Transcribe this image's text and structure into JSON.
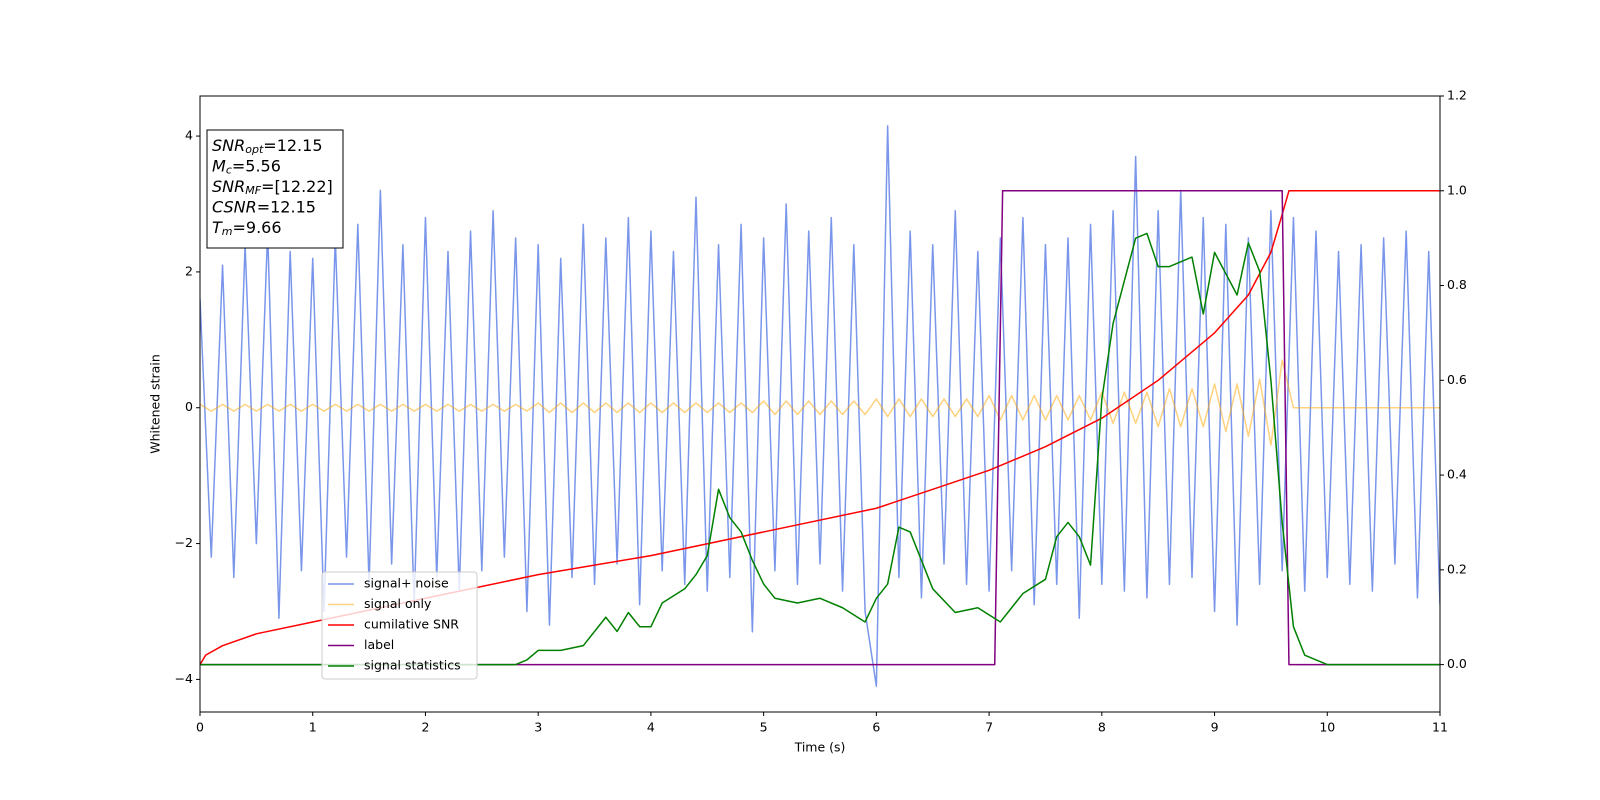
{
  "chart_data": {
    "type": "line",
    "xlabel": "Time (s)",
    "ylabel": "Whitened strain",
    "xlim": [
      0,
      11
    ],
    "xticks": [
      0,
      1,
      2,
      3,
      4,
      5,
      6,
      7,
      8,
      9,
      10,
      11
    ],
    "ylim": [
      -4.48,
      4.59
    ],
    "yticks": [
      {
        "value": -4,
        "label": "−4"
      },
      {
        "value": -2,
        "label": "−2"
      },
      0,
      2,
      4
    ],
    "y2lim": [
      -0.1,
      1.2
    ],
    "y2ticks": [
      {
        "value": 0,
        "label": "0.0"
      },
      0.2,
      0.4,
      0.6,
      0.8,
      {
        "value": 1,
        "label": "1.0"
      },
      1.2
    ],
    "legend": "best",
    "annotations": [
      {
        "symbol": "SNR",
        "subscript": "opt",
        "text": "=12.15"
      },
      {
        "symbol": "M",
        "subscript": "c",
        "text": "=5.56"
      },
      {
        "symbol": "SNR",
        "subscript": "MF",
        "text": "=[12.22]"
      },
      {
        "symbol": "CSNR",
        "text": "=12.15"
      },
      {
        "symbol": "T",
        "subscript": "m",
        "text": "=9.66"
      }
    ],
    "x": [
      0,
      0.1,
      0.2,
      0.3,
      0.4,
      0.5,
      0.6,
      0.7,
      0.8,
      0.9,
      1,
      1.1,
      1.2,
      1.3,
      1.4,
      1.5,
      1.6,
      1.7,
      1.8,
      1.9,
      2,
      2.1,
      2.2,
      2.3,
      2.4,
      2.5,
      2.6,
      2.7,
      2.8,
      2.9,
      3,
      3.1,
      3.2,
      3.3,
      3.4,
      3.5,
      3.6,
      3.7,
      3.8,
      3.9,
      4,
      4.1,
      4.2,
      4.3,
      4.4,
      4.5,
      4.6,
      4.7,
      4.8,
      4.9,
      5,
      5.1,
      5.2,
      5.3,
      5.4,
      5.5,
      5.6,
      5.7,
      5.8,
      5.9,
      6,
      6.1,
      6.2,
      6.3,
      6.4,
      6.5,
      6.6,
      6.7,
      6.8,
      6.9,
      7,
      7.1,
      7.2,
      7.3,
      7.4,
      7.5,
      7.6,
      7.7,
      7.8,
      7.9,
      8,
      8.1,
      8.2,
      8.3,
      8.4,
      8.5,
      8.6,
      8.7,
      8.8,
      8.9,
      9,
      9.1,
      9.2,
      9.3,
      9.4,
      9.5,
      9.6,
      9.7,
      9.8,
      9.9,
      10,
      10.1,
      10.2,
      10.3,
      10.4,
      10.5,
      10.6,
      10.7,
      10.8,
      10.9,
      11
    ],
    "series": [
      {
        "name": "signal+ noise",
        "color": "#4169e1",
        "alpha": 0.7,
        "values": [
          1.6,
          -2.2,
          2.1,
          -2.5,
          2.4,
          -2.0,
          2.6,
          -3.1,
          2.3,
          -2.4,
          2.2,
          -3.0,
          2.5,
          -2.2,
          2.7,
          -2.6,
          3.2,
          -2.3,
          2.4,
          -2.9,
          2.8,
          -2.5,
          2.3,
          -2.7,
          2.6,
          -2.4,
          2.9,
          -2.2,
          2.5,
          -3.0,
          2.4,
          -3.2,
          2.2,
          -2.5,
          2.7,
          -2.6,
          2.5,
          -2.3,
          2.8,
          -2.9,
          2.6,
          -2.4,
          2.3,
          -2.6,
          3.1,
          -2.7,
          2.4,
          -2.5,
          2.7,
          -3.3,
          2.5,
          -2.4,
          3.0,
          -2.6,
          2.6,
          -2.3,
          2.8,
          -2.7,
          2.4,
          -3.0,
          -4.1,
          4.15,
          -2.5,
          2.6,
          -2.8,
          2.4,
          -2.3,
          2.9,
          -2.6,
          2.3,
          -2.7,
          2.5,
          -2.4,
          2.8,
          -2.9,
          2.4,
          -2.6,
          2.5,
          -3.1,
          2.7,
          -2.6,
          2.9,
          -2.7,
          3.7,
          -2.8,
          2.9,
          -2.6,
          3.2,
          -2.5,
          2.8,
          -3.0,
          2.7,
          -3.2,
          2.5,
          -2.6,
          2.9,
          -2.4,
          2.8,
          -2.7,
          2.6,
          -2.5,
          2.3,
          -2.6,
          2.4,
          -2.7,
          2.5,
          -2.3,
          2.6,
          -2.8,
          2.3,
          -2.9
        ]
      },
      {
        "name": "signal only",
        "color": "#ffa500",
        "alpha": 0.5,
        "values": [
          0.05,
          -0.05,
          0.05,
          -0.05,
          0.05,
          -0.05,
          0.05,
          -0.05,
          0.05,
          -0.05,
          0.05,
          -0.05,
          0.05,
          -0.05,
          0.05,
          -0.05,
          0.05,
          -0.05,
          0.05,
          -0.05,
          0.05,
          -0.05,
          0.05,
          -0.05,
          0.05,
          -0.05,
          0.05,
          -0.05,
          0.05,
          -0.05,
          0.07,
          -0.07,
          0.07,
          -0.07,
          0.07,
          -0.07,
          0.07,
          -0.07,
          0.07,
          -0.07,
          0.07,
          -0.07,
          0.07,
          -0.07,
          0.07,
          -0.07,
          0.07,
          -0.07,
          0.07,
          -0.07,
          0.1,
          -0.1,
          0.1,
          -0.1,
          0.1,
          -0.1,
          0.1,
          -0.1,
          0.1,
          -0.1,
          0.13,
          -0.13,
          0.13,
          -0.13,
          0.13,
          -0.13,
          0.13,
          -0.13,
          0.13,
          -0.13,
          0.18,
          -0.18,
          0.18,
          -0.18,
          0.18,
          -0.18,
          0.18,
          -0.18,
          0.18,
          -0.18,
          0.23,
          -0.23,
          0.23,
          -0.23,
          0.23,
          -0.28,
          0.28,
          -0.28,
          0.28,
          -0.28,
          0.35,
          -0.35,
          0.35,
          -0.42,
          0.42,
          -0.55,
          0.7,
          0,
          0,
          0,
          0,
          0,
          0,
          0,
          0,
          0,
          0,
          0,
          0,
          0,
          0
        ]
      },
      {
        "name": "cumilative SNR",
        "color": "#ff0000",
        "axis": "y2",
        "x": [
          0,
          0.05,
          0.2,
          0.5,
          1,
          2,
          3,
          4,
          5,
          6,
          6.5,
          7,
          7.5,
          8,
          8.5,
          9,
          9.3,
          9.5,
          9.6,
          9.66,
          11
        ],
        "values": [
          0,
          0.02,
          0.04,
          0.065,
          0.09,
          0.14,
          0.19,
          0.23,
          0.28,
          0.33,
          0.37,
          0.41,
          0.46,
          0.52,
          0.6,
          0.7,
          0.78,
          0.87,
          0.95,
          1,
          1
        ]
      },
      {
        "name": "label",
        "color": "#800080",
        "axis": "y2",
        "x": [
          0,
          7.05,
          7.12,
          9.6,
          9.66,
          11
        ],
        "values": [
          0,
          0,
          1,
          1,
          0,
          0
        ]
      },
      {
        "name": "signal statistics",
        "color": "#008000",
        "axis": "y2",
        "x": [
          0,
          2.8,
          2.9,
          3.0,
          3.2,
          3.4,
          3.6,
          3.7,
          3.8,
          3.9,
          4.0,
          4.1,
          4.3,
          4.4,
          4.5,
          4.6,
          4.7,
          4.8,
          4.9,
          5.0,
          5.1,
          5.3,
          5.5,
          5.7,
          5.9,
          6.0,
          6.1,
          6.2,
          6.3,
          6.5,
          6.7,
          6.9,
          7.1,
          7.3,
          7.5,
          7.6,
          7.7,
          7.8,
          7.9,
          8.0,
          8.1,
          8.2,
          8.3,
          8.4,
          8.5,
          8.6,
          8.7,
          8.8,
          8.9,
          9.0,
          9.2,
          9.3,
          9.4,
          9.5,
          9.6,
          9.7,
          9.8,
          10.0,
          11
        ],
        "values": [
          0,
          0,
          0.01,
          0.03,
          0.03,
          0.04,
          0.1,
          0.07,
          0.11,
          0.08,
          0.08,
          0.13,
          0.16,
          0.19,
          0.23,
          0.37,
          0.31,
          0.28,
          0.22,
          0.17,
          0.14,
          0.13,
          0.14,
          0.12,
          0.09,
          0.14,
          0.17,
          0.29,
          0.28,
          0.16,
          0.11,
          0.12,
          0.09,
          0.15,
          0.18,
          0.27,
          0.3,
          0.27,
          0.21,
          0.56,
          0.72,
          0.81,
          0.9,
          0.91,
          0.84,
          0.84,
          0.85,
          0.86,
          0.74,
          0.87,
          0.78,
          0.89,
          0.83,
          0.6,
          0.3,
          0.08,
          0.02,
          0,
          0
        ]
      }
    ]
  }
}
